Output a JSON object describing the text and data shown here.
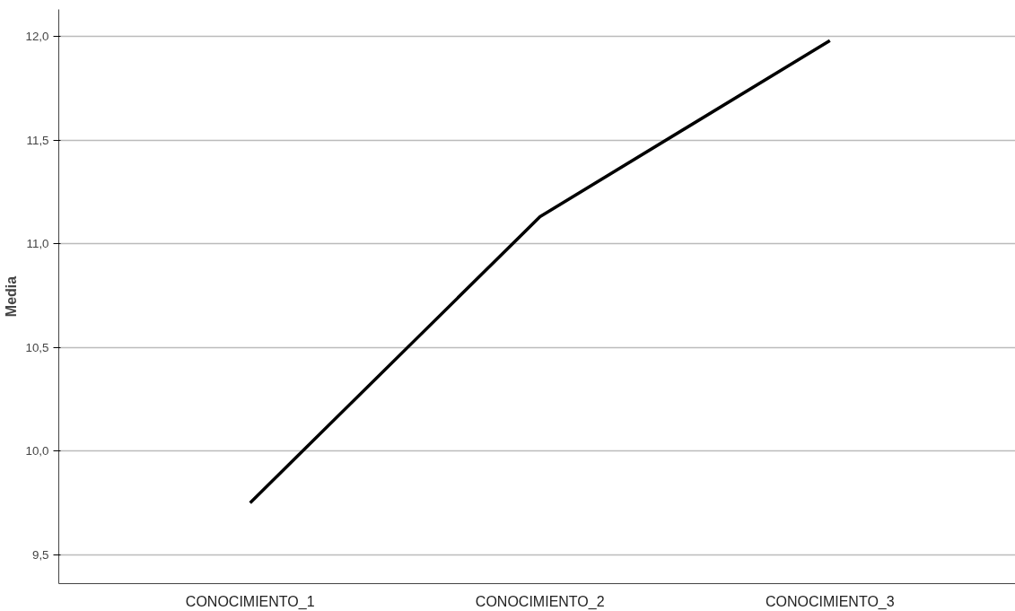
{
  "chart_data": {
    "type": "line",
    "ylabel": "Media",
    "categories": [
      "CONOCIMIENTO_1",
      "CONOCIMIENTO_2",
      "CONOCIMIENTO_3"
    ],
    "series": [
      {
        "color": "#000000",
        "values": [
          9.75,
          11.13,
          11.98
        ]
      }
    ],
    "ylim": [
      9.36,
      12.13
    ],
    "yticks": [
      {
        "value": 9.5,
        "label": "9,5"
      },
      {
        "value": 10.0,
        "label": "10,0"
      },
      {
        "value": 10.5,
        "label": "10,5"
      },
      {
        "value": 11.0,
        "label": "11,0"
      },
      {
        "value": 11.5,
        "label": "11,5"
      },
      {
        "value": 12.0,
        "label": "12,0"
      }
    ],
    "grid": "y",
    "marker": "none",
    "line_style": "solid"
  }
}
